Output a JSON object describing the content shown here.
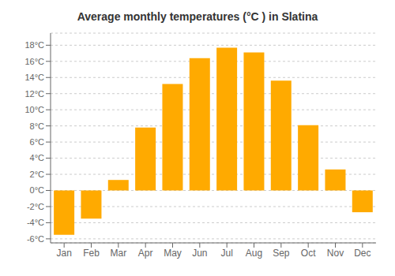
{
  "chart_data": {
    "type": "bar",
    "title": "Average monthly temperatures (°C ) in Slatina",
    "categories": [
      "Jan",
      "Feb",
      "Mar",
      "Apr",
      "May",
      "Jun",
      "Jul",
      "Aug",
      "Sep",
      "Oct",
      "Nov",
      "Dec"
    ],
    "values": [
      -5.5,
      -3.5,
      1.3,
      7.8,
      13.2,
      16.4,
      17.7,
      17.1,
      13.6,
      8.1,
      2.6,
      -2.7
    ],
    "color": "#FFAA00",
    "ylim": [
      -6.5,
      19.5
    ],
    "yticks": [
      {
        "value": -6,
        "label": "-6°C"
      },
      {
        "value": -4,
        "label": "-4°C"
      },
      {
        "value": -2,
        "label": "-2°C"
      },
      {
        "value": 0,
        "label": "0°C"
      },
      {
        "value": 2,
        "label": "2°C"
      },
      {
        "value": 4,
        "label": "4°C"
      },
      {
        "value": 6,
        "label": "6°C"
      },
      {
        "value": 8,
        "label": "8°C"
      },
      {
        "value": 10,
        "label": "10°C"
      },
      {
        "value": 12,
        "label": "12°C"
      },
      {
        "value": 14,
        "label": "14°C"
      },
      {
        "value": 16,
        "label": "16°C"
      },
      {
        "value": 18,
        "label": "18°C"
      }
    ],
    "grid": true
  }
}
